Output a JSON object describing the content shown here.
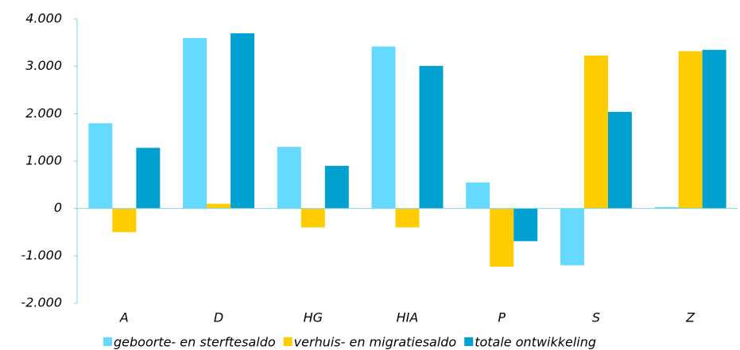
{
  "chart_data": {
    "type": "bar",
    "categories": [
      "A",
      "D",
      "HG",
      "HIA",
      "P",
      "S",
      "Z"
    ],
    "series": [
      {
        "name": "geboorte- en sterftesaldo",
        "color": "#66d9ff",
        "values": [
          1800,
          3600,
          1300,
          3420,
          550,
          -1200,
          30
        ]
      },
      {
        "name": "verhuis- en migratiesaldo",
        "color": "#ffcc00",
        "values": [
          -500,
          100,
          -400,
          -400,
          -1230,
          3230,
          3320
        ]
      },
      {
        "name": "totale ontwikkeling",
        "color": "#00a0d0",
        "values": [
          1280,
          3700,
          900,
          3010,
          -690,
          2040,
          3350
        ]
      }
    ],
    "ylim": [
      -2000,
      4000
    ],
    "yticks": [
      {
        "value": -2000,
        "label": "-2.000"
      },
      {
        "value": -1000,
        "label": "-1.000"
      },
      0,
      {
        "value": 1000,
        "label": "1.000"
      },
      {
        "value": 2000,
        "label": "2.000"
      },
      {
        "value": 3000,
        "label": "3.000"
      },
      {
        "value": 4000,
        "label": "4.000"
      }
    ],
    "legend": "bottom"
  }
}
